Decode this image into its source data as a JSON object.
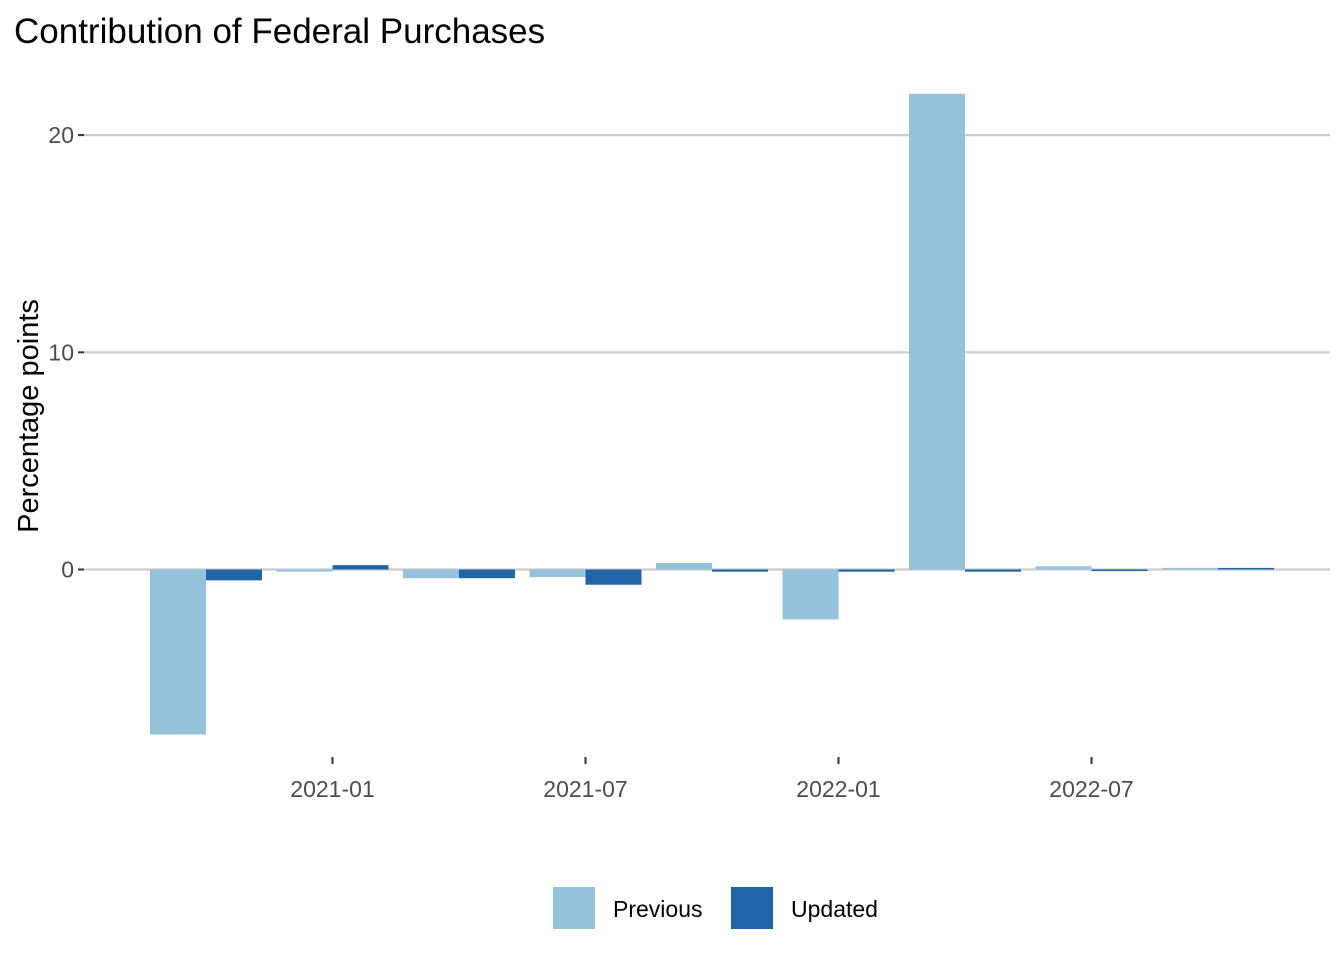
{
  "chart_data": {
    "type": "bar",
    "title": "Contribution of Federal Purchases",
    "xlabel": "",
    "ylabel": "Percentage points",
    "x_tick_labels": [
      "2021-01",
      "2021-07",
      "2022-01",
      "2022-07"
    ],
    "y_tick_labels": [
      "0",
      "10",
      "20"
    ],
    "y_ticks": [
      0,
      10,
      20
    ],
    "ylim": [
      -8.5,
      23.0
    ],
    "categories": [
      "2020-10",
      "2021-01",
      "2021-04",
      "2021-07",
      "2021-10",
      "2022-01",
      "2022-04",
      "2022-07",
      "2022-10"
    ],
    "series": [
      {
        "name": "Previous",
        "color": "#96c3dc",
        "values": [
          -7.6,
          -0.1,
          -0.4,
          -0.35,
          0.3,
          -2.3,
          21.9,
          0.15,
          0.0
        ]
      },
      {
        "name": "Updated",
        "color": "#1f65a8",
        "values": [
          -0.5,
          0.2,
          -0.4,
          -0.7,
          -0.1,
          -0.1,
          -0.1,
          -0.05,
          0.0
        ]
      }
    ],
    "grid": true,
    "legend_position": "bottom"
  }
}
